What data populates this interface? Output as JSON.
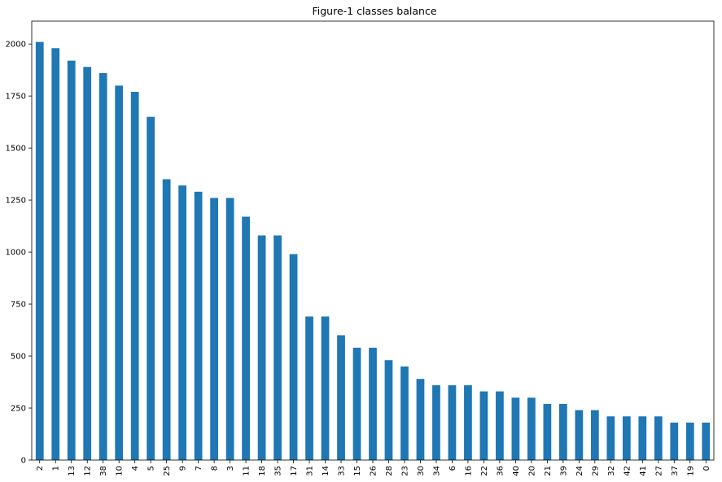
{
  "chart_data": {
    "type": "bar",
    "title": "Figure-1 classes balance",
    "xlabel": "",
    "ylabel": "",
    "categories": [
      "2",
      "1",
      "13",
      "12",
      "38",
      "10",
      "4",
      "5",
      "25",
      "9",
      "7",
      "8",
      "3",
      "11",
      "18",
      "35",
      "17",
      "31",
      "14",
      "33",
      "15",
      "26",
      "28",
      "23",
      "30",
      "34",
      "6",
      "16",
      "22",
      "36",
      "40",
      "20",
      "21",
      "39",
      "24",
      "29",
      "32",
      "42",
      "41",
      "27",
      "37",
      "19",
      "0"
    ],
    "values": [
      2010,
      1980,
      1920,
      1890,
      1860,
      1800,
      1770,
      1650,
      1350,
      1320,
      1290,
      1260,
      1260,
      1170,
      1080,
      1080,
      990,
      690,
      690,
      600,
      540,
      540,
      480,
      450,
      390,
      360,
      360,
      360,
      330,
      330,
      300,
      300,
      270,
      270,
      240,
      240,
      210,
      210,
      210,
      210,
      180,
      180,
      180
    ],
    "ylim": [
      0,
      2110
    ],
    "yticks": [
      0,
      250,
      500,
      750,
      1000,
      1250,
      1500,
      1750,
      2000
    ],
    "grid": false,
    "legend": "none",
    "bar_color": "#1f77b4",
    "tick_label_rotation": 90
  }
}
